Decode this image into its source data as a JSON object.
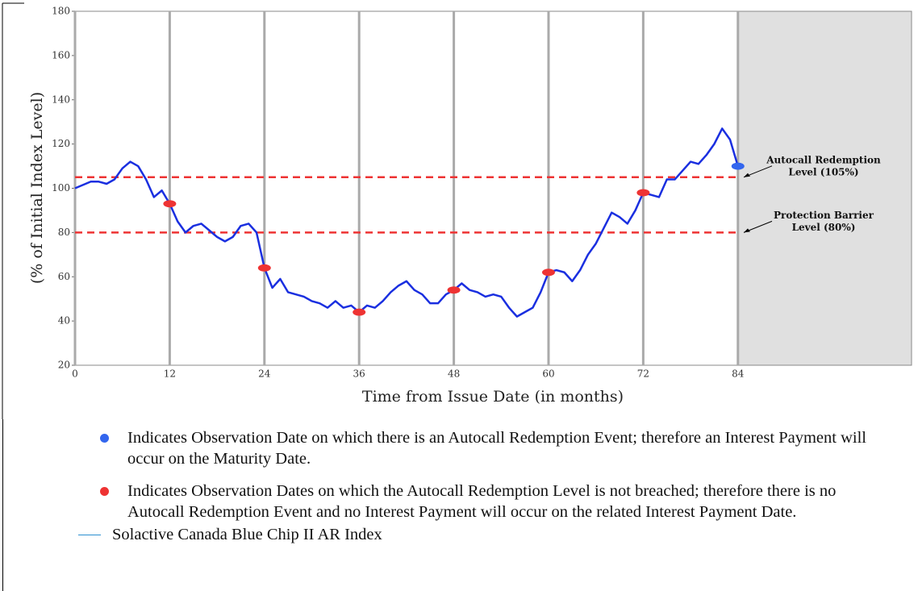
{
  "chart_data": {
    "type": "line",
    "x_label": "Time from Issue Date (in months)",
    "y_label": "(% of Initial Index Level)",
    "xlim": [
      0,
      106
    ],
    "ylim": [
      20,
      180
    ],
    "xticks": [
      0,
      12,
      24,
      36,
      48,
      60,
      72,
      84
    ],
    "yticks": [
      20,
      40,
      60,
      80,
      100,
      120,
      140,
      160,
      180
    ],
    "x_grid": true,
    "shade_xlim": [
      84,
      106
    ],
    "series": [
      {
        "name": "Solactive Canada Blue Chip II AR Index",
        "color": "#1a2fe0",
        "x": [
          0,
          2,
          3,
          4,
          5,
          6,
          7,
          8,
          9,
          10,
          11,
          12,
          13,
          14,
          15,
          16,
          17,
          18,
          19,
          20,
          21,
          22,
          23,
          24,
          25,
          26,
          27,
          28,
          29,
          30,
          31,
          32,
          33,
          34,
          35,
          36,
          37,
          38,
          39,
          40,
          41,
          42,
          43,
          44,
          45,
          46,
          47,
          48,
          49,
          50,
          51,
          52,
          53,
          54,
          55,
          56,
          57,
          58,
          59,
          60,
          61,
          62,
          63,
          64,
          65,
          66,
          67,
          68,
          69,
          70,
          71,
          72,
          73,
          74,
          75,
          76,
          77,
          78,
          79,
          80,
          81,
          82,
          83,
          84
        ],
        "values": [
          100,
          103,
          103,
          102,
          104,
          109,
          112,
          110,
          104,
          96,
          99,
          93,
          85,
          80,
          83,
          84,
          81,
          78,
          76,
          78,
          83,
          84,
          80,
          64,
          55,
          59,
          53,
          52,
          51,
          49,
          48,
          46,
          49,
          46,
          47,
          44,
          47,
          46,
          49,
          53,
          56,
          58,
          54,
          52,
          48,
          48,
          52,
          54,
          57,
          54,
          53,
          51,
          52,
          51,
          46,
          42,
          44,
          46,
          53,
          62,
          63,
          62,
          58,
          63,
          70,
          75,
          82,
          89,
          87,
          84,
          90,
          98,
          97,
          96,
          104,
          104,
          108,
          112,
          111,
          115,
          120,
          127,
          122,
          110
        ]
      }
    ],
    "observations": {
      "x": [
        12,
        24,
        36,
        48,
        60,
        72,
        84
      ],
      "values": [
        93,
        64,
        44,
        54,
        62,
        98,
        110
      ],
      "colors": [
        "#ee3333",
        "#ee3333",
        "#ee3333",
        "#ee3333",
        "#ee3333",
        "#ee3333",
        "#3366ee"
      ]
    },
    "reference_lines": [
      {
        "value": 105,
        "color": "#ee3333",
        "label": [
          "Autocall Redemption",
          "Level (105%)"
        ]
      },
      {
        "value": 80,
        "color": "#ee3333",
        "label": [
          "Protection Barrier",
          "Level (80%)"
        ]
      }
    ],
    "notes": [
      {
        "color": "#3366ee",
        "text": "Indicates Observation Date on which there is an Autocall Redemption Event; therefore an Interest Payment will occur on the Maturity Date."
      },
      {
        "color": "#ee3333",
        "text": "Indicates Observation Dates on which the Autocall Redemption Level is not breached; therefore there is no Autocall Redemption Event and no Interest Payment will occur on the related Interest Payment Date."
      }
    ]
  }
}
